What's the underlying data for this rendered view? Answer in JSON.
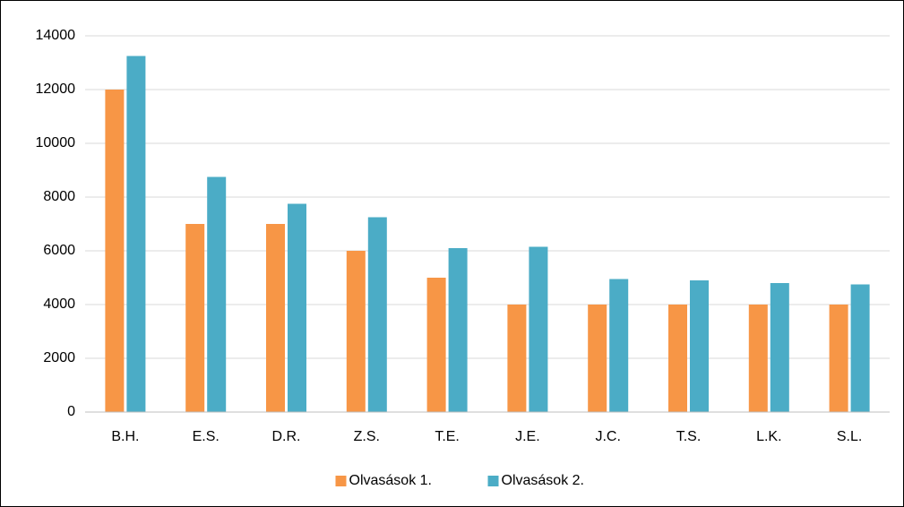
{
  "chart_data": {
    "type": "bar",
    "categories": [
      "B.H.",
      "E.S.",
      "D.R.",
      "Z.S.",
      "T.E.",
      "J.E.",
      "J.C.",
      "T.S.",
      "L.K.",
      "S.L."
    ],
    "series": [
      {
        "name": "Olvasások 1.",
        "color": "#f79646",
        "values": [
          12000,
          7000,
          7000,
          6000,
          5000,
          4000,
          4000,
          4000,
          4000,
          4000
        ]
      },
      {
        "name": "Olvasások 2.",
        "color": "#4bacc6",
        "values": [
          13250,
          8750,
          7750,
          7250,
          6100,
          6150,
          4950,
          4900,
          4800,
          4750
        ]
      }
    ],
    "ylim": [
      0,
      14000
    ],
    "yticks": [
      0,
      2000,
      4000,
      6000,
      8000,
      10000,
      12000,
      14000
    ],
    "grid": true,
    "legend": "bottom"
  }
}
